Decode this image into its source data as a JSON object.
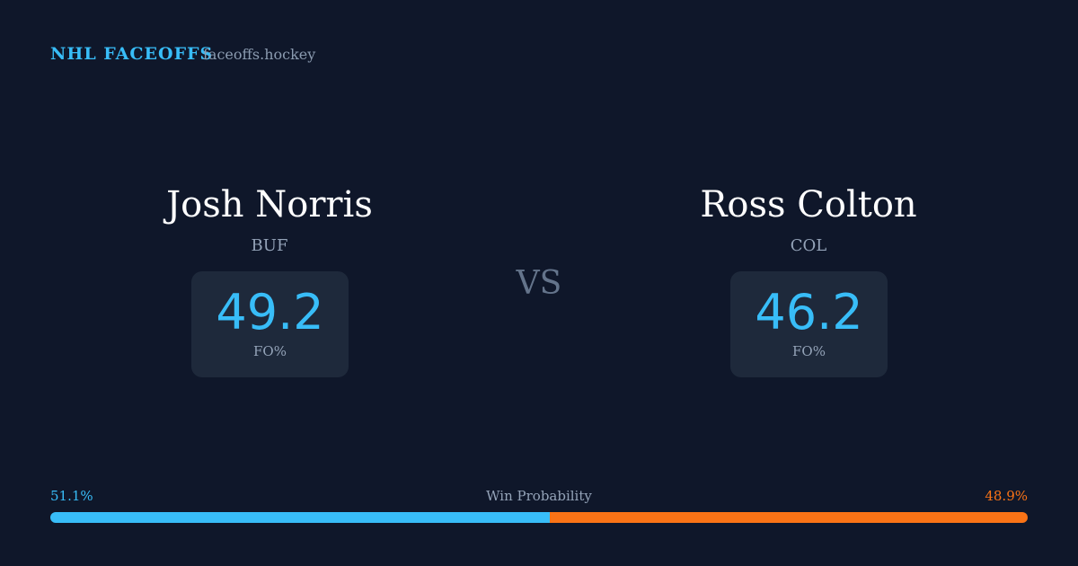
{
  "header": {
    "title": "NHL FACEOFFS",
    "site": "faceoffs.hockey"
  },
  "players": [
    {
      "name": "Josh Norris",
      "team": "BUF",
      "fo_pct": 49.2,
      "stat_label": "FO%"
    },
    {
      "name": "Ross Colton",
      "team": "COL",
      "fo_pct": 46.2,
      "stat_label": "FO%"
    }
  ],
  "vs": "VS",
  "win_probability": {
    "label": "Win Probability",
    "values": [
      {
        "value": 51.1,
        "label": "51.1%"
      },
      {
        "value": 48.9,
        "label": "48.9%"
      }
    ],
    "colors": [
      "#38bdf8",
      "#f97316"
    ]
  }
}
